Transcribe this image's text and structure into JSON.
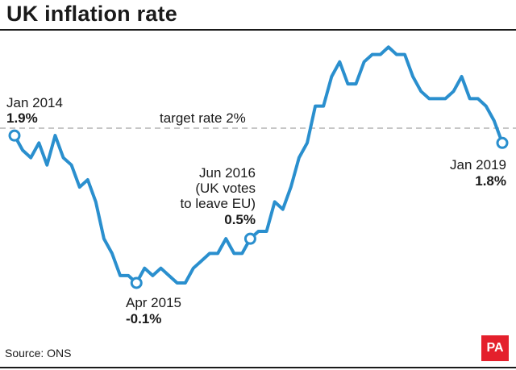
{
  "header": {
    "title": "UK inflation rate"
  },
  "footer": {
    "source": "Source: ONS",
    "brand": "PA"
  },
  "colors": {
    "line": "#2a8fce",
    "target": "#b3b3b3",
    "brand": "#e4202c"
  },
  "chart_data": {
    "type": "line",
    "title": "UK inflation rate",
    "xlabel": "",
    "ylabel": "",
    "x_start": "Jan 2014",
    "x_end": "Jan 2019",
    "ylim": [
      -0.2,
      3.3
    ],
    "series": [
      {
        "name": "UK inflation rate (%)",
        "values": [
          1.9,
          1.7,
          1.6,
          1.8,
          1.5,
          1.9,
          1.6,
          1.5,
          1.2,
          1.3,
          1.0,
          0.5,
          0.3,
          0.0,
          0.0,
          -0.1,
          0.1,
          0.0,
          0.1,
          0.0,
          -0.1,
          -0.1,
          0.1,
          0.2,
          0.3,
          0.3,
          0.5,
          0.3,
          0.3,
          0.5,
          0.6,
          0.6,
          1.0,
          0.9,
          1.2,
          1.6,
          1.8,
          2.3,
          2.3,
          2.7,
          2.9,
          2.6,
          2.6,
          2.9,
          3.0,
          3.0,
          3.1,
          3.0,
          3.0,
          2.7,
          2.5,
          2.4,
          2.4,
          2.4,
          2.5,
          2.7,
          2.4,
          2.4,
          2.3,
          2.1,
          1.8
        ]
      }
    ],
    "target": {
      "value": 2.0,
      "label": "target rate 2%"
    },
    "annotations": [
      {
        "index": 0,
        "date": "Jan 2014",
        "value": "1.9%"
      },
      {
        "index": 15,
        "date": "Apr 2015",
        "value": "-0.1%"
      },
      {
        "index": 29,
        "date": "Jun 2016",
        "note_lines": [
          "(UK votes",
          "to leave EU)"
        ],
        "value": "0.5%"
      },
      {
        "index": 60,
        "date": "Jan 2019",
        "value": "1.8%"
      }
    ]
  }
}
